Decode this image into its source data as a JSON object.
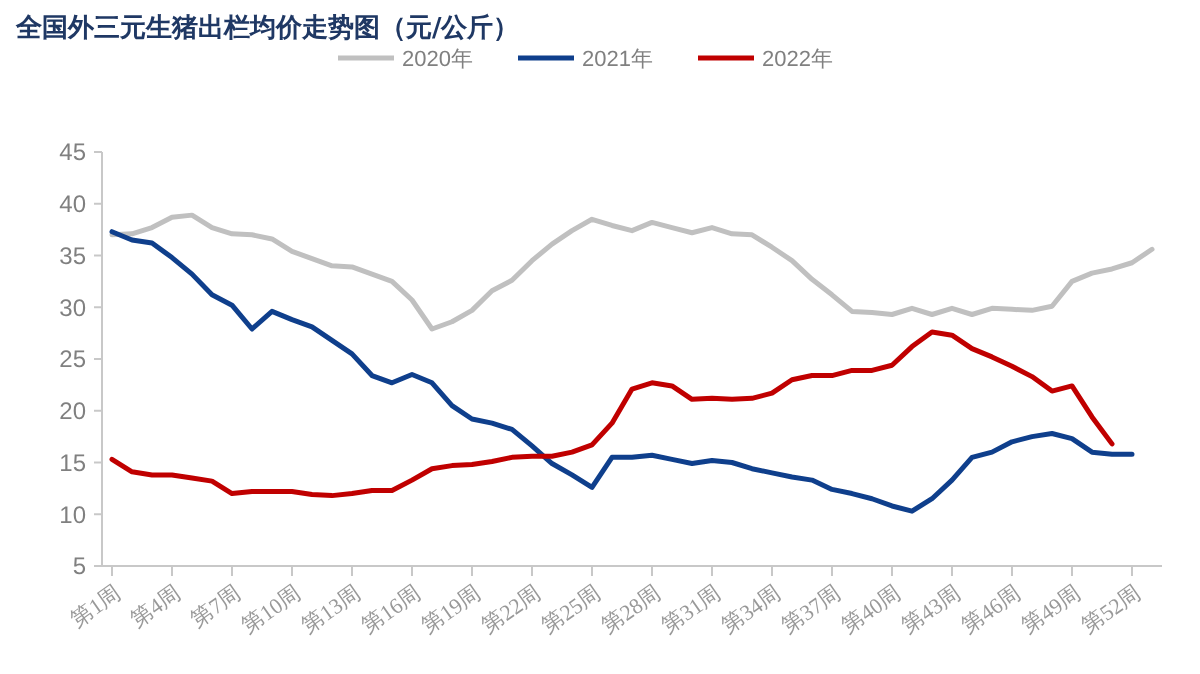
{
  "chart_data": {
    "type": "line",
    "title": "全国外三元生猪出栏均价走势图（元/公斤）",
    "categories": [
      "第1周",
      null,
      null,
      "第4周",
      null,
      null,
      "第7周",
      null,
      null,
      "第10周",
      null,
      null,
      "第13周",
      null,
      null,
      "第16周",
      null,
      null,
      "第19周",
      null,
      null,
      "第22周",
      null,
      null,
      "第25周",
      null,
      null,
      "第28周",
      null,
      null,
      "第31周",
      null,
      null,
      "第34周",
      null,
      null,
      "第37周",
      null,
      null,
      "第40周",
      null,
      null,
      "第43周",
      null,
      null,
      "第46周",
      null,
      null,
      "第49周",
      null,
      null,
      "第52周",
      null
    ],
    "ylim": [
      5,
      45
    ],
    "yticks": [
      5,
      10,
      15,
      20,
      25,
      30,
      35,
      40,
      45
    ],
    "grid": false,
    "legend": "top",
    "marker": "none",
    "line_style": "solid",
    "series": [
      {
        "name": "2020年",
        "color": "#c0c0c0",
        "values": [
          37.0,
          37.1,
          37.7,
          38.7,
          38.9,
          37.7,
          37.1,
          37.0,
          36.6,
          35.4,
          34.7,
          34.0,
          33.9,
          33.2,
          32.5,
          30.7,
          27.9,
          28.6,
          29.7,
          31.6,
          32.6,
          34.5,
          36.1,
          37.4,
          38.5,
          37.9,
          37.4,
          38.2,
          37.7,
          37.2,
          37.7,
          37.1,
          37.0,
          35.8,
          34.5,
          32.7,
          31.2,
          29.6,
          29.5,
          29.3,
          29.9,
          29.3,
          29.9,
          29.3,
          29.9,
          29.8,
          29.7,
          30.1,
          32.5,
          33.3,
          33.7,
          34.3,
          35.6
        ]
      },
      {
        "name": "2021年",
        "color": "#0f3f8c",
        "values": [
          37.3,
          36.5,
          36.2,
          34.8,
          33.2,
          31.2,
          30.2,
          27.9,
          29.6,
          28.8,
          28.1,
          26.8,
          25.5,
          23.4,
          22.7,
          23.5,
          22.7,
          20.5,
          19.2,
          18.8,
          18.2,
          16.6,
          14.9,
          13.8,
          12.6,
          15.5,
          15.5,
          15.7,
          15.3,
          14.9,
          15.2,
          15.0,
          14.4,
          14.0,
          13.6,
          13.3,
          12.4,
          12.0,
          11.5,
          10.8,
          10.3,
          11.5,
          13.3,
          15.5,
          16.0,
          17.0,
          17.5,
          17.8,
          17.3,
          16.0,
          15.8,
          15.8,
          null
        ]
      },
      {
        "name": "2022年",
        "color": "#c00000",
        "values": [
          15.3,
          14.1,
          13.8,
          13.8,
          13.5,
          13.2,
          12.0,
          12.2,
          12.2,
          12.2,
          11.9,
          11.8,
          12.0,
          12.3,
          12.3,
          13.3,
          14.4,
          14.7,
          14.8,
          15.1,
          15.5,
          15.6,
          15.6,
          16.0,
          16.7,
          18.8,
          22.1,
          22.7,
          22.4,
          21.1,
          21.2,
          21.1,
          21.2,
          21.7,
          23.0,
          23.4,
          23.4,
          23.9,
          23.9,
          24.4,
          26.2,
          27.6,
          27.3,
          26.0,
          25.2,
          24.3,
          23.3,
          21.9,
          22.4,
          19.4,
          16.8,
          null,
          null
        ]
      }
    ]
  }
}
